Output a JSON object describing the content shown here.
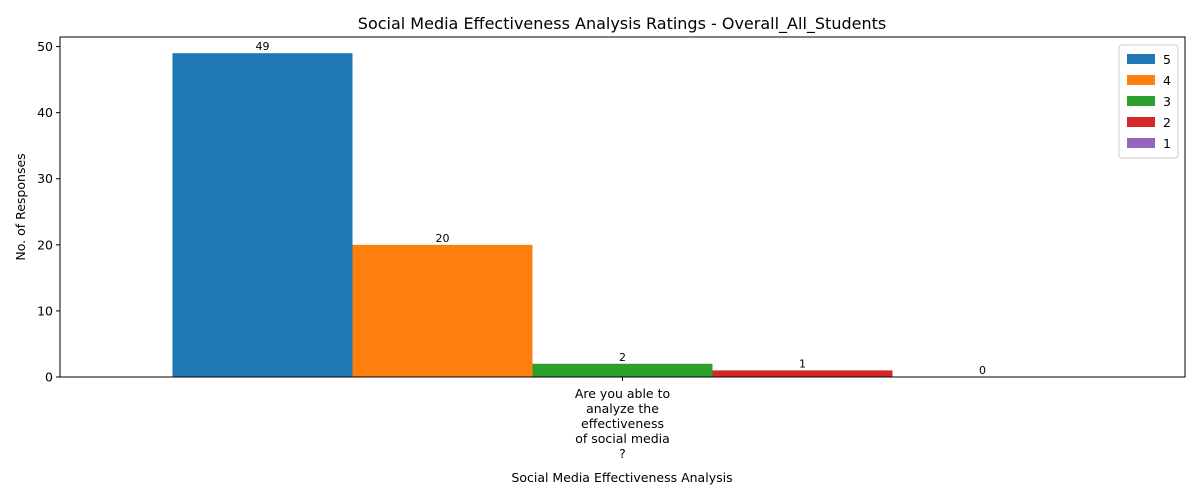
{
  "chart_data": {
    "type": "bar",
    "title": "Social Media Effectiveness Analysis Ratings - Overall_All_Students",
    "xlabel": "Social Media Effectiveness Analysis",
    "ylabel": "No. of Responses",
    "categories": [
      "Are you able to\nanalyze the\neffectiveness\nof social media\n?"
    ],
    "series": [
      {
        "name": "5",
        "values": [
          49
        ],
        "color": "#1f77b4"
      },
      {
        "name": "4",
        "values": [
          20
        ],
        "color": "#ff7f0e"
      },
      {
        "name": "3",
        "values": [
          2
        ],
        "color": "#2ca02c"
      },
      {
        "name": "2",
        "values": [
          1
        ],
        "color": "#d62728"
      },
      {
        "name": "1",
        "values": [
          0
        ],
        "color": "#9467bd"
      }
    ],
    "ylim": [
      0,
      51.45
    ],
    "yticks": [
      0,
      10,
      20,
      30,
      40,
      50
    ],
    "legend_position": "top-right",
    "grid": false
  }
}
